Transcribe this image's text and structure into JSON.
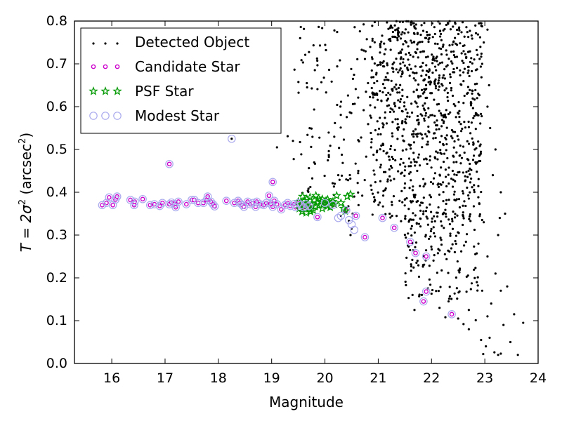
{
  "chart_data": {
    "type": "scatter",
    "title": "",
    "xlabel": "Magnitude",
    "ylabel": {
      "prefix": "T = 2σ",
      "sup1": "2",
      "mid": " (arcsec",
      "sup2": "2",
      "suffix": ")"
    },
    "xlim": [
      15.3,
      24.0
    ],
    "ylim": [
      0.0,
      0.8
    ],
    "x_ticks": [
      16,
      17,
      18,
      19,
      20,
      21,
      22,
      23,
      24
    ],
    "y_ticks": [
      0.0,
      0.1,
      0.2,
      0.3,
      0.4,
      0.5,
      0.6,
      0.7,
      0.8
    ],
    "grid": false,
    "legend_position": "upper left",
    "series": [
      {
        "name": "Detected Object",
        "marker": "dot",
        "color": "#000000",
        "points": [
          [
            18.25,
            0.525
          ],
          [
            17.08,
            0.466
          ],
          [
            19.02,
            0.424
          ],
          [
            18.97,
            0.392
          ],
          [
            18.98,
            0.373
          ],
          [
            19.86,
            0.342
          ],
          [
            20.75,
            0.295
          ],
          [
            21.08,
            0.34
          ],
          [
            21.3,
            0.317
          ],
          [
            21.6,
            0.284
          ],
          [
            21.7,
            0.258
          ],
          [
            21.9,
            0.25
          ],
          [
            21.9,
            0.168
          ],
          [
            21.85,
            0.145
          ],
          [
            22.38,
            0.115
          ],
          [
            22.24,
            0.49
          ],
          [
            20.3,
            0.345
          ],
          [
            20.38,
            0.355
          ],
          [
            20.45,
            0.333
          ],
          [
            20.5,
            0.315
          ],
          [
            20.4,
            0.43
          ],
          [
            20.25,
            0.44
          ],
          [
            20.63,
            0.37
          ],
          [
            20.55,
            0.39
          ],
          [
            20.52,
            0.35
          ],
          [
            19.3,
            0.531
          ],
          [
            19.1,
            0.505
          ],
          [
            19.4,
            0.52
          ],
          [
            20.48,
            0.3
          ],
          [
            22.26,
            0.108
          ],
          [
            21.52,
            0.183
          ],
          [
            21.57,
            0.153
          ],
          [
            21.68,
            0.125
          ],
          [
            22.0,
            0.163
          ],
          [
            22.15,
            0.13
          ],
          [
            22.32,
            0.145
          ],
          [
            22.5,
            0.105
          ],
          [
            22.6,
            0.092
          ],
          [
            22.7,
            0.08
          ],
          [
            22.83,
            0.101
          ],
          [
            22.7,
            0.125
          ],
          [
            22.93,
            0.055
          ],
          [
            23.02,
            0.04
          ],
          [
            22.97,
            0.022
          ],
          [
            23.18,
            0.026
          ],
          [
            23.25,
            0.02
          ],
          [
            23.3,
            0.023
          ],
          [
            23.05,
            0.11
          ],
          [
            23.09,
            0.06
          ],
          [
            23.12,
            0.14
          ],
          [
            23.3,
            0.17
          ],
          [
            23.42,
            0.18
          ],
          [
            23.48,
            0.05
          ],
          [
            23.62,
            0.02
          ],
          [
            23.72,
            0.095
          ],
          [
            23.55,
            0.115
          ],
          [
            23.35,
            0.09
          ],
          [
            22.95,
            0.17
          ],
          [
            22.85,
            0.19
          ],
          [
            23.2,
            0.21
          ],
          [
            23.05,
            0.25
          ],
          [
            23.25,
            0.3
          ],
          [
            23.28,
            0.34
          ],
          [
            23.38,
            0.35
          ],
          [
            23.3,
            0.4
          ],
          [
            23.15,
            0.44
          ],
          [
            23.2,
            0.5
          ],
          [
            23.1,
            0.55
          ],
          [
            23.05,
            0.6
          ],
          [
            23.08,
            0.65
          ],
          [
            22.95,
            0.7
          ],
          [
            22.98,
            0.75
          ],
          [
            23.05,
            0.78
          ],
          [
            22.98,
            0.33
          ],
          [
            22.88,
            0.28
          ]
        ]
      },
      {
        "name": "Candidate Star",
        "marker": "circle",
        "color": "#cc00cc",
        "points": [
          [
            15.82,
            0.37
          ],
          [
            15.9,
            0.375
          ],
          [
            15.95,
            0.388
          ],
          [
            16.02,
            0.37
          ],
          [
            16.07,
            0.383
          ],
          [
            16.1,
            0.39
          ],
          [
            16.35,
            0.382
          ],
          [
            16.42,
            0.37
          ],
          [
            16.43,
            0.378
          ],
          [
            16.58,
            0.384
          ],
          [
            16.72,
            0.37
          ],
          [
            16.8,
            0.372
          ],
          [
            16.9,
            0.368
          ],
          [
            16.95,
            0.375
          ],
          [
            17.08,
            0.372
          ],
          [
            17.12,
            0.376
          ],
          [
            17.18,
            0.373
          ],
          [
            17.2,
            0.365
          ],
          [
            17.25,
            0.378
          ],
          [
            17.4,
            0.372
          ],
          [
            17.5,
            0.382
          ],
          [
            17.55,
            0.382
          ],
          [
            17.62,
            0.375
          ],
          [
            17.72,
            0.375
          ],
          [
            17.78,
            0.382
          ],
          [
            17.8,
            0.39
          ],
          [
            17.86,
            0.378
          ],
          [
            17.9,
            0.372
          ],
          [
            17.93,
            0.367
          ],
          [
            18.15,
            0.38
          ],
          [
            18.3,
            0.375
          ],
          [
            18.37,
            0.38
          ],
          [
            18.4,
            0.375
          ],
          [
            18.45,
            0.37
          ],
          [
            18.48,
            0.366
          ],
          [
            18.55,
            0.378
          ],
          [
            18.6,
            0.372
          ],
          [
            18.65,
            0.375
          ],
          [
            18.7,
            0.366
          ],
          [
            18.72,
            0.378
          ],
          [
            18.78,
            0.372
          ],
          [
            18.85,
            0.37
          ],
          [
            18.9,
            0.375
          ],
          [
            18.95,
            0.392
          ],
          [
            18.98,
            0.373
          ],
          [
            19.02,
            0.366
          ],
          [
            19.05,
            0.38
          ],
          [
            19.1,
            0.372
          ],
          [
            19.18,
            0.36
          ],
          [
            19.25,
            0.37
          ],
          [
            19.3,
            0.375
          ],
          [
            19.35,
            0.368
          ],
          [
            19.42,
            0.372
          ],
          [
            19.45,
            0.365
          ],
          [
            19.5,
            0.375
          ],
          [
            19.55,
            0.37
          ],
          [
            19.6,
            0.365
          ],
          [
            19.65,
            0.372
          ],
          [
            19.7,
            0.368
          ],
          [
            20.0,
            0.375
          ],
          [
            20.15,
            0.37
          ],
          [
            20.4,
            0.358
          ],
          [
            20.58,
            0.345
          ],
          [
            19.02,
            0.424
          ],
          [
            19.86,
            0.342
          ],
          [
            20.75,
            0.295
          ],
          [
            21.08,
            0.34
          ],
          [
            21.3,
            0.317
          ],
          [
            21.6,
            0.284
          ],
          [
            21.7,
            0.258
          ],
          [
            21.9,
            0.25
          ],
          [
            21.9,
            0.168
          ],
          [
            21.85,
            0.145
          ],
          [
            22.38,
            0.115
          ],
          [
            17.08,
            0.466
          ]
        ]
      },
      {
        "name": "PSF Star",
        "marker": "star",
        "color": "#009900",
        "points": [
          [
            19.5,
            0.378
          ],
          [
            19.52,
            0.362
          ],
          [
            19.55,
            0.372
          ],
          [
            19.57,
            0.355
          ],
          [
            19.6,
            0.368
          ],
          [
            19.62,
            0.38
          ],
          [
            19.65,
            0.352
          ],
          [
            19.68,
            0.374
          ],
          [
            19.7,
            0.362
          ],
          [
            19.72,
            0.388
          ],
          [
            19.75,
            0.37
          ],
          [
            19.78,
            0.358
          ],
          [
            19.8,
            0.381
          ],
          [
            19.82,
            0.367
          ],
          [
            19.85,
            0.375
          ],
          [
            19.88,
            0.386
          ],
          [
            19.9,
            0.37
          ],
          [
            19.93,
            0.378
          ],
          [
            19.95,
            0.384
          ],
          [
            19.97,
            0.372
          ],
          [
            20.02,
            0.38
          ],
          [
            20.05,
            0.368
          ],
          [
            20.1,
            0.365
          ],
          [
            20.12,
            0.374
          ],
          [
            20.18,
            0.372
          ],
          [
            20.22,
            0.392
          ],
          [
            20.35,
            0.362
          ],
          [
            20.38,
            0.356
          ],
          [
            20.42,
            0.39
          ],
          [
            20.48,
            0.395
          ],
          [
            19.58,
            0.39
          ],
          [
            19.66,
            0.384
          ],
          [
            19.73,
            0.355
          ],
          [
            19.83,
            0.392
          ],
          [
            19.95,
            0.362
          ],
          [
            20.05,
            0.383
          ],
          [
            20.15,
            0.378
          ],
          [
            20.3,
            0.375
          ]
        ]
      },
      {
        "name": "Modest Star",
        "marker": "open-circle",
        "color": "#aaaaee",
        "points": [
          [
            15.82,
            0.37
          ],
          [
            15.9,
            0.375
          ],
          [
            15.95,
            0.388
          ],
          [
            16.02,
            0.37
          ],
          [
            16.07,
            0.383
          ],
          [
            16.1,
            0.39
          ],
          [
            16.35,
            0.382
          ],
          [
            16.42,
            0.37
          ],
          [
            16.43,
            0.378
          ],
          [
            16.58,
            0.384
          ],
          [
            16.72,
            0.37
          ],
          [
            16.8,
            0.372
          ],
          [
            16.9,
            0.368
          ],
          [
            16.95,
            0.375
          ],
          [
            17.08,
            0.372
          ],
          [
            17.12,
            0.376
          ],
          [
            17.18,
            0.373
          ],
          [
            17.2,
            0.365
          ],
          [
            17.25,
            0.378
          ],
          [
            17.4,
            0.372
          ],
          [
            17.5,
            0.382
          ],
          [
            17.55,
            0.382
          ],
          [
            17.62,
            0.375
          ],
          [
            17.72,
            0.375
          ],
          [
            17.78,
            0.382
          ],
          [
            17.8,
            0.39
          ],
          [
            17.86,
            0.378
          ],
          [
            17.9,
            0.372
          ],
          [
            17.93,
            0.367
          ],
          [
            18.15,
            0.38
          ],
          [
            18.3,
            0.375
          ],
          [
            18.37,
            0.38
          ],
          [
            18.4,
            0.375
          ],
          [
            18.45,
            0.37
          ],
          [
            18.48,
            0.366
          ],
          [
            18.55,
            0.378
          ],
          [
            18.6,
            0.372
          ],
          [
            18.65,
            0.375
          ],
          [
            18.7,
            0.366
          ],
          [
            18.72,
            0.378
          ],
          [
            18.78,
            0.372
          ],
          [
            18.85,
            0.37
          ],
          [
            18.9,
            0.375
          ],
          [
            18.95,
            0.392
          ],
          [
            18.98,
            0.373
          ],
          [
            19.02,
            0.366
          ],
          [
            19.05,
            0.38
          ],
          [
            19.1,
            0.372
          ],
          [
            19.18,
            0.36
          ],
          [
            19.25,
            0.37
          ],
          [
            19.3,
            0.375
          ],
          [
            19.35,
            0.368
          ],
          [
            19.42,
            0.372
          ],
          [
            19.45,
            0.365
          ],
          [
            19.5,
            0.375
          ],
          [
            19.55,
            0.37
          ],
          [
            19.6,
            0.365
          ],
          [
            19.65,
            0.372
          ],
          [
            19.7,
            0.368
          ],
          [
            20.0,
            0.375
          ],
          [
            20.15,
            0.37
          ],
          [
            20.4,
            0.358
          ],
          [
            20.58,
            0.345
          ],
          [
            19.02,
            0.424
          ],
          [
            19.86,
            0.342
          ],
          [
            20.75,
            0.295
          ],
          [
            21.08,
            0.34
          ],
          [
            21.3,
            0.317
          ],
          [
            21.6,
            0.284
          ],
          [
            21.7,
            0.258
          ],
          [
            21.9,
            0.25
          ],
          [
            21.9,
            0.168
          ],
          [
            21.85,
            0.145
          ],
          [
            22.38,
            0.115
          ],
          [
            17.08,
            0.466
          ],
          [
            18.25,
            0.525
          ],
          [
            20.3,
            0.345
          ],
          [
            20.45,
            0.335
          ],
          [
            20.5,
            0.325
          ],
          [
            20.55,
            0.312
          ],
          [
            20.25,
            0.34
          ]
        ]
      }
    ]
  }
}
